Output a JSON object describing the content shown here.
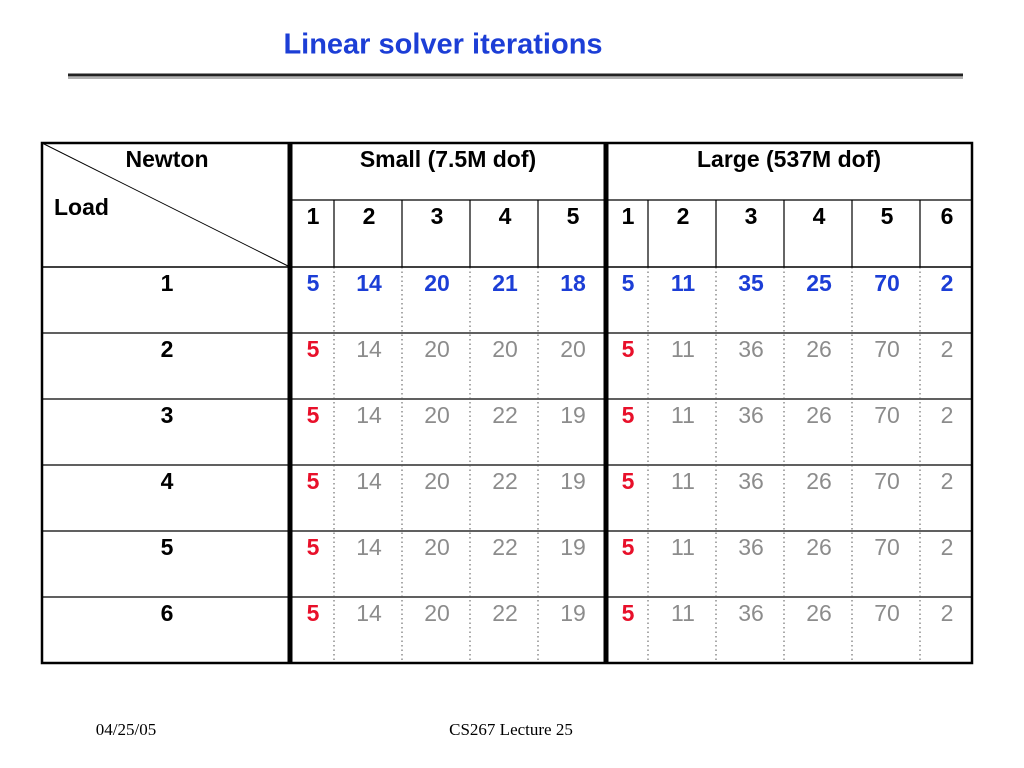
{
  "header": {
    "title": "Linear solver iterations"
  },
  "table": {
    "corner": {
      "top": "Newton",
      "bottom": "Load"
    },
    "groups": [
      {
        "label": "Small (7.5M dof)",
        "columns": [
          1,
          2,
          3,
          4,
          5
        ]
      },
      {
        "label": "Large (537M dof)",
        "columns": [
          1,
          2,
          3,
          4,
          5,
          6
        ]
      }
    ],
    "rows": [
      {
        "load": 1,
        "values": [
          5,
          14,
          20,
          21,
          18,
          5,
          11,
          35,
          25,
          70,
          2
        ]
      },
      {
        "load": 2,
        "values": [
          5,
          14,
          20,
          20,
          20,
          5,
          11,
          36,
          26,
          70,
          2
        ]
      },
      {
        "load": 3,
        "values": [
          5,
          14,
          20,
          22,
          19,
          5,
          11,
          36,
          26,
          70,
          2
        ]
      },
      {
        "load": 4,
        "values": [
          5,
          14,
          20,
          22,
          19,
          5,
          11,
          36,
          26,
          70,
          2
        ]
      },
      {
        "load": 5,
        "values": [
          5,
          14,
          20,
          22,
          19,
          5,
          11,
          36,
          26,
          70,
          2
        ]
      },
      {
        "load": 6,
        "values": [
          5,
          14,
          20,
          22,
          19,
          5,
          11,
          36,
          26,
          70,
          2
        ]
      }
    ]
  },
  "footer": {
    "date": "04/25/05",
    "course": "CS267 Lecture 25"
  }
}
